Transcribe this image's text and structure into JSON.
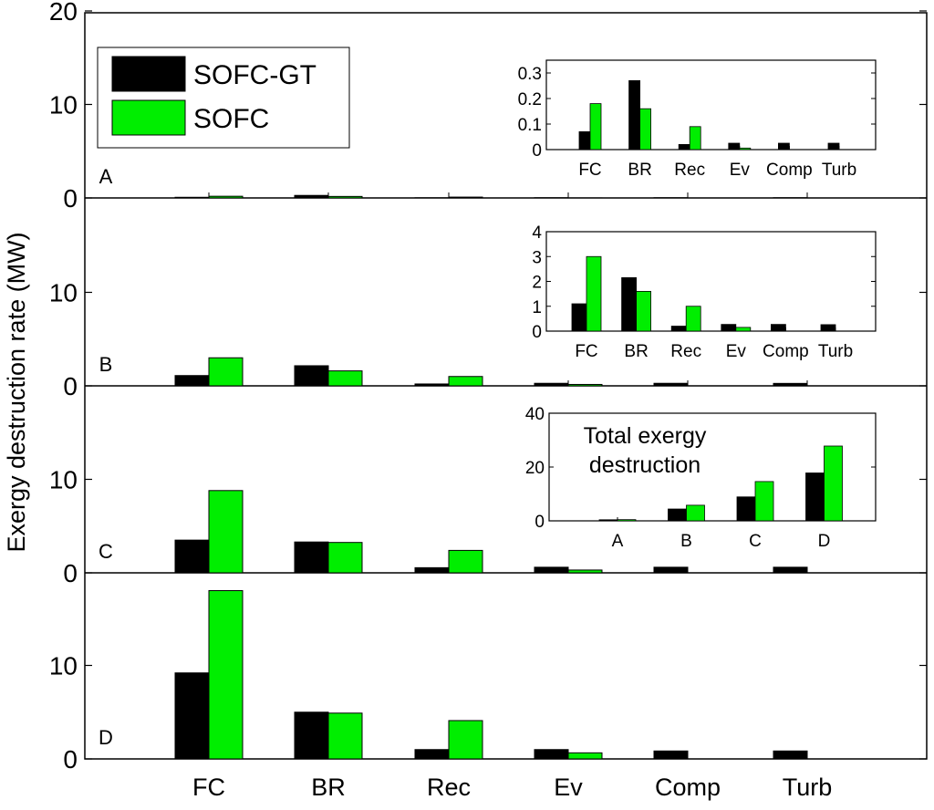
{
  "chart_data": {
    "type": "bar",
    "ylabel": "Exergy destruction rate (MW)",
    "categories": [
      "FC",
      "BR",
      "Rec",
      "Ev",
      "Comp",
      "Turb"
    ],
    "legend": {
      "entries": [
        {
          "name": "SOFC-GT",
          "color": "#000000"
        },
        {
          "name": "SOFC",
          "color": "#00ee00"
        }
      ],
      "placement": "top-left"
    },
    "panels": [
      {
        "label": "A",
        "yticks": [
          "0",
          "10",
          "20"
        ],
        "ylim": [
          0,
          20
        ],
        "series": [
          {
            "name": "SOFC-GT",
            "values": [
              0.07,
              0.27,
              0.02,
              0.025,
              0.025,
              0.025
            ]
          },
          {
            "name": "SOFC",
            "values": [
              0.18,
              0.16,
              0.09,
              0.006,
              0,
              0
            ]
          }
        ],
        "inset": {
          "ylim": [
            0,
            0.35
          ],
          "yticks": [
            "0",
            "0.1",
            "0.2",
            "0.3"
          ],
          "categories": [
            "FC",
            "BR",
            "Rec",
            "Ev",
            "Comp",
            "Turb"
          ],
          "series": [
            {
              "name": "SOFC-GT",
              "values": [
                0.07,
                0.27,
                0.02,
                0.025,
                0.025,
                0.025
              ]
            },
            {
              "name": "SOFC",
              "values": [
                0.18,
                0.16,
                0.09,
                0.006,
                0,
                0
              ]
            }
          ]
        }
      },
      {
        "label": "B",
        "yticks": [
          "0",
          "10"
        ],
        "ylim": [
          0,
          20
        ],
        "series": [
          {
            "name": "SOFC-GT",
            "values": [
              1.1,
              2.15,
              0.2,
              0.27,
              0.27,
              0.26
            ]
          },
          {
            "name": "SOFC",
            "values": [
              3.0,
              1.6,
              1.0,
              0.15,
              0,
              0
            ]
          }
        ],
        "inset": {
          "ylim": [
            0,
            4
          ],
          "yticks": [
            "0",
            "1",
            "2",
            "3",
            "4"
          ],
          "categories": [
            "FC",
            "BR",
            "Rec",
            "Ev",
            "Comp",
            "Turb"
          ],
          "series": [
            {
              "name": "SOFC-GT",
              "values": [
                1.1,
                2.15,
                0.2,
                0.27,
                0.27,
                0.26
              ]
            },
            {
              "name": "SOFC",
              "values": [
                3.0,
                1.6,
                1.0,
                0.15,
                0,
                0
              ]
            }
          ]
        }
      },
      {
        "label": "C",
        "yticks": [
          "0",
          "10"
        ],
        "ylim": [
          0,
          20
        ],
        "series": [
          {
            "name": "SOFC-GT",
            "values": [
              3.5,
              3.3,
              0.55,
              0.6,
              0.6,
              0.6
            ]
          },
          {
            "name": "SOFC",
            "values": [
              8.8,
              3.25,
              2.4,
              0.3,
              0,
              0
            ]
          }
        ],
        "inset": {
          "title_lines": [
            "Total exergy",
            "destruction"
          ],
          "ylim": [
            0,
            40
          ],
          "yticks": [
            "0",
            "20",
            "40"
          ],
          "categories": [
            "A",
            "B",
            "C",
            "D"
          ],
          "series": [
            {
              "name": "SOFC-GT",
              "values": [
                0.4,
                4.4,
                8.9,
                17.8
              ]
            },
            {
              "name": "SOFC",
              "values": [
                0.45,
                5.8,
                14.6,
                27.8
              ]
            }
          ]
        }
      },
      {
        "label": "D",
        "yticks": [
          "0",
          "10"
        ],
        "ylim": [
          0,
          20
        ],
        "series": [
          {
            "name": "SOFC-GT",
            "values": [
              9.2,
              5.0,
              1.0,
              1.0,
              0.85,
              0.85
            ]
          },
          {
            "name": "SOFC",
            "values": [
              18.0,
              4.9,
              4.1,
              0.65,
              0,
              0
            ]
          }
        ]
      }
    ]
  }
}
